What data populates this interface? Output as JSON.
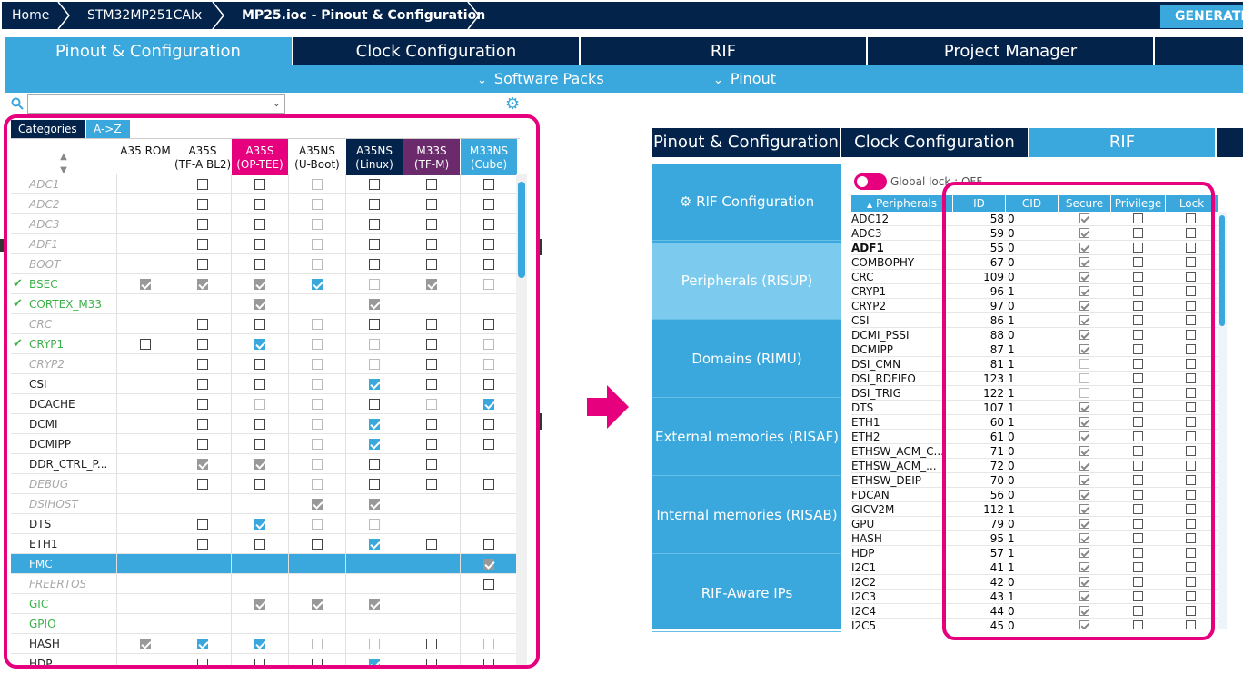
{
  "breadcrumb": [
    "Home",
    "STM32MP251CAIx",
    "MP25.ioc - Pinout & Configuration"
  ],
  "generate_label": "GENERATE CODE",
  "main_tabs": [
    "Pinout & Configuration",
    "Clock Configuration",
    "RIF",
    "Project Manager"
  ],
  "sub_menu": [
    "Software Packs",
    "Pinout"
  ],
  "left_panel": {
    "category_tabs": [
      "Categories",
      "A->Z"
    ],
    "columns": [
      "A35 ROM",
      "A35S\n(TF-A BL2)",
      "A35S\n(OP-TEE)",
      "A35NS\n(U-Boot)",
      "A35NS\n(Linux)",
      "M33S\n(TF-M)",
      "M33NS\n(Cube)"
    ],
    "column_colors": [
      "#ffffff",
      "#ffffff",
      "#e6007e",
      "#ffffff",
      "#03234b",
      "#6b2a6b",
      "#3aa8dc"
    ],
    "rows": [
      {
        "name": "ADC1",
        "style": "gray",
        "check": false,
        "cells": [
          "",
          "u",
          "u",
          "d",
          "u",
          "u",
          "u"
        ]
      },
      {
        "name": "ADC2",
        "style": "gray",
        "check": false,
        "cells": [
          "",
          "u",
          "u",
          "d",
          "u",
          "u",
          "u"
        ]
      },
      {
        "name": "ADC3",
        "style": "gray",
        "check": false,
        "cells": [
          "",
          "u",
          "u",
          "d",
          "u",
          "u",
          "u"
        ]
      },
      {
        "name": "ADF1",
        "style": "gray",
        "check": false,
        "cells": [
          "",
          "u",
          "u",
          "d",
          "u",
          "u",
          "u"
        ]
      },
      {
        "name": "BOOT",
        "style": "gray",
        "check": false,
        "cells": [
          "",
          "u",
          "u",
          "d",
          "u",
          "u",
          "u"
        ]
      },
      {
        "name": "BSEC",
        "style": "green",
        "check": true,
        "cells": [
          "g",
          "g",
          "g",
          "c",
          "d",
          "g",
          "d"
        ]
      },
      {
        "name": "CORTEX_M33",
        "style": "green",
        "check": true,
        "cells": [
          "",
          "",
          "g",
          "",
          "g",
          "",
          ""
        ]
      },
      {
        "name": "CRC",
        "style": "gray",
        "check": false,
        "cells": [
          "",
          "u",
          "u",
          "d",
          "u",
          "u",
          "u"
        ]
      },
      {
        "name": "CRYP1",
        "style": "green",
        "check": true,
        "cells": [
          "u",
          "u",
          "c",
          "d",
          "d",
          "u",
          "d"
        ]
      },
      {
        "name": "CRYP2",
        "style": "gray",
        "check": false,
        "cells": [
          "",
          "u",
          "u",
          "d",
          "d",
          "u",
          "d"
        ]
      },
      {
        "name": "CSI",
        "style": "black",
        "check": false,
        "cells": [
          "",
          "u",
          "u",
          "d",
          "c",
          "u",
          "u"
        ]
      },
      {
        "name": "DCACHE",
        "style": "black",
        "check": false,
        "cells": [
          "",
          "u",
          "d",
          "d",
          "u",
          "d",
          "c"
        ]
      },
      {
        "name": "DCMI",
        "style": "black",
        "check": false,
        "cells": [
          "",
          "u",
          "u",
          "d",
          "c",
          "u",
          "u"
        ]
      },
      {
        "name": "DCMIPP",
        "style": "black",
        "check": false,
        "cells": [
          "",
          "u",
          "u",
          "d",
          "c",
          "u",
          "u"
        ]
      },
      {
        "name": "DDR_CTRL_P...",
        "style": "black",
        "check": false,
        "cells": [
          "",
          "g",
          "g",
          "d",
          "u",
          "u",
          ""
        ]
      },
      {
        "name": "DEBUG",
        "style": "gray",
        "check": false,
        "cells": [
          "",
          "u",
          "u",
          "d",
          "u",
          "u",
          "u"
        ]
      },
      {
        "name": "DSIHOST",
        "style": "gray",
        "check": false,
        "cells": [
          "",
          "",
          "",
          "g",
          "g",
          "",
          ""
        ]
      },
      {
        "name": "DTS",
        "style": "black",
        "check": false,
        "cells": [
          "",
          "u",
          "c",
          "d",
          "d",
          "",
          ""
        ]
      },
      {
        "name": "ETH1",
        "style": "black",
        "check": false,
        "cells": [
          "",
          "u",
          "u",
          "u",
          "c",
          "u",
          "u"
        ]
      },
      {
        "name": "FMC",
        "style": "black",
        "check": false,
        "cells": [
          "",
          "",
          "",
          "",
          "",
          "",
          "g"
        ],
        "selected": true
      },
      {
        "name": "FREERTOS",
        "style": "gray",
        "check": false,
        "cells": [
          "",
          "",
          "",
          "",
          "",
          "",
          "u"
        ]
      },
      {
        "name": "GIC",
        "style": "green",
        "check": false,
        "cells": [
          "",
          "",
          "g",
          "g",
          "g",
          "",
          ""
        ]
      },
      {
        "name": "GPIO",
        "style": "green",
        "check": false,
        "cells": [
          "",
          "",
          "",
          "",
          "",
          "",
          ""
        ]
      },
      {
        "name": "HASH",
        "style": "black",
        "check": false,
        "cells": [
          "g",
          "c",
          "c",
          "d",
          "d",
          "u",
          "d"
        ]
      },
      {
        "name": "HDP",
        "style": "black",
        "check": false,
        "cells": [
          "",
          "u",
          "u",
          "u",
          "c",
          "u",
          "u"
        ]
      }
    ]
  },
  "right_panel": {
    "tabs": [
      "Pinout & Configuration",
      "Clock Configuration",
      "RIF"
    ],
    "side_items": [
      "RIF Configuration",
      "Peripherals (RISUP)",
      "Domains (RIMU)",
      "External memories (RISAF)",
      "Internal memories (RISAB)",
      "RIF-Aware IPs"
    ],
    "global_lock_label": "Global lock : OFF",
    "table_headers": [
      "Peripherals",
      "ID",
      "CID",
      "Secure",
      "Privilege",
      "Lock"
    ],
    "rows": [
      {
        "name": "ADC12",
        "id": "58",
        "cid": "0",
        "secure": true
      },
      {
        "name": "ADC3",
        "id": "59",
        "cid": "0",
        "secure": true
      },
      {
        "name": "ADF1",
        "id": "55",
        "cid": "0",
        "secure": true,
        "bold": true
      },
      {
        "name": "COMBOPHY",
        "id": "67",
        "cid": "0",
        "secure": true
      },
      {
        "name": "CRC",
        "id": "109",
        "cid": "0",
        "secure": true
      },
      {
        "name": "CRYP1",
        "id": "96",
        "cid": "1",
        "secure": true
      },
      {
        "name": "CRYP2",
        "id": "97",
        "cid": "0",
        "secure": true
      },
      {
        "name": "CSI",
        "id": "86",
        "cid": "1",
        "secure": true
      },
      {
        "name": "DCMI_PSSI",
        "id": "88",
        "cid": "0",
        "secure": true
      },
      {
        "name": "DCMIPP",
        "id": "87",
        "cid": "1",
        "secure": true
      },
      {
        "name": "DSI_CMN",
        "id": "81",
        "cid": "1",
        "secure": false
      },
      {
        "name": "DSI_RDFIFO",
        "id": "123",
        "cid": "1",
        "secure": false
      },
      {
        "name": "DSI_TRIG",
        "id": "122",
        "cid": "1",
        "secure": false
      },
      {
        "name": "DTS",
        "id": "107",
        "cid": "1",
        "secure": true
      },
      {
        "name": "ETH1",
        "id": "60",
        "cid": "1",
        "secure": true
      },
      {
        "name": "ETH2",
        "id": "61",
        "cid": "0",
        "secure": true
      },
      {
        "name": "ETHSW_ACM_C...",
        "id": "71",
        "cid": "0",
        "secure": true
      },
      {
        "name": "ETHSW_ACM_...",
        "id": "72",
        "cid": "0",
        "secure": true
      },
      {
        "name": "ETHSW_DEIP",
        "id": "70",
        "cid": "0",
        "secure": true
      },
      {
        "name": "FDCAN",
        "id": "56",
        "cid": "0",
        "secure": true
      },
      {
        "name": "GICV2M",
        "id": "112",
        "cid": "1",
        "secure": true
      },
      {
        "name": "GPU",
        "id": "79",
        "cid": "0",
        "secure": true
      },
      {
        "name": "HASH",
        "id": "95",
        "cid": "1",
        "secure": true
      },
      {
        "name": "HDP",
        "id": "57",
        "cid": "1",
        "secure": true
      },
      {
        "name": "I2C1",
        "id": "41",
        "cid": "1",
        "secure": true
      },
      {
        "name": "I2C2",
        "id": "42",
        "cid": "0",
        "secure": true
      },
      {
        "name": "I2C3",
        "id": "43",
        "cid": "1",
        "secure": true
      },
      {
        "name": "I2C4",
        "id": "44",
        "cid": "0",
        "secure": true
      },
      {
        "name": "I2C5",
        "id": "45",
        "cid": "0",
        "secure": true
      }
    ]
  },
  "colors": {
    "accent": "#3aa8dc",
    "navy": "#03234b",
    "highlight": "#e6007e",
    "green": "#3db04b"
  }
}
